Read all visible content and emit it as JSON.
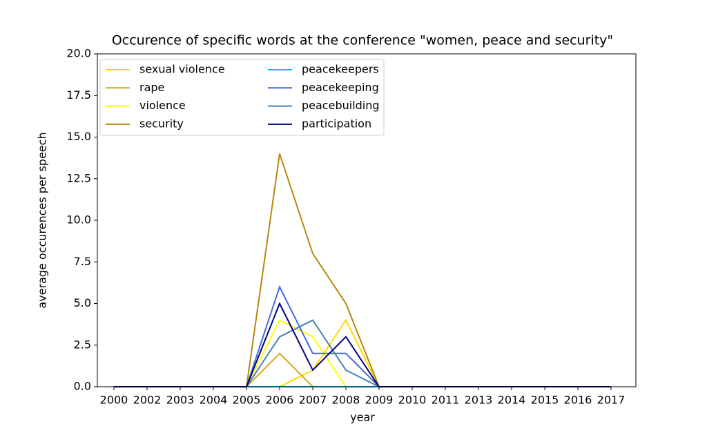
{
  "chart_data": {
    "type": "line",
    "title": "Occurence of specific words at the conference \"women, peace and security\"",
    "x_label": "year",
    "y_label": "average occurences per speech",
    "categories": [
      "2000",
      "2002",
      "2003",
      "2004",
      "2005",
      "2006",
      "2007",
      "2008",
      "2009",
      "2010",
      "2011",
      "2013",
      "2014",
      "2015",
      "2016",
      "2017"
    ],
    "ylim": [
      0,
      20
    ],
    "yticks": [
      {
        "value": 0,
        "label": "0.0"
      },
      2.5,
      {
        "value": 5,
        "label": "5.0"
      },
      7.5,
      {
        "value": 10,
        "label": "10.0"
      },
      12.5,
      {
        "value": 15,
        "label": "15.0"
      },
      17.5,
      {
        "value": 20,
        "label": "20.0"
      }
    ],
    "legend": "upper left",
    "legend_columns": 2,
    "series": [
      {
        "name": "sexual violence",
        "color": "#ffd700",
        "values": [
          0,
          0,
          0,
          0,
          0,
          0,
          1,
          4,
          0,
          0,
          0,
          0,
          0,
          0,
          0,
          0
        ]
      },
      {
        "name": "rape",
        "color": "#daa520",
        "values": [
          0,
          0,
          0,
          0,
          0,
          2,
          0,
          0,
          0,
          0,
          0,
          0,
          0,
          0,
          0,
          0
        ]
      },
      {
        "name": "violence",
        "color": "#ffff00",
        "values": [
          0,
          0,
          0,
          0,
          0,
          4,
          3,
          0,
          0,
          0,
          0,
          0,
          0,
          0,
          0,
          0
        ]
      },
      {
        "name": "security",
        "color": "#b8860b",
        "values": [
          0,
          0,
          0,
          0,
          0,
          14,
          8,
          5,
          0,
          0,
          0,
          0,
          0,
          0,
          0,
          0
        ]
      },
      {
        "name": "peacekeepers",
        "color": "#00bfff",
        "values": [
          0,
          0,
          0,
          0,
          0,
          0,
          0,
          0,
          0,
          0,
          0,
          0,
          0,
          0,
          0,
          0
        ]
      },
      {
        "name": "peacekeeping",
        "color": "#4169e1",
        "values": [
          0,
          0,
          0,
          0,
          0,
          6,
          2,
          2,
          0,
          0,
          0,
          0,
          0,
          0,
          0,
          0
        ]
      },
      {
        "name": "peacebuilding",
        "color": "#4682b4",
        "values": [
          0,
          0,
          0,
          0,
          0,
          3,
          4,
          1,
          0,
          0,
          0,
          0,
          0,
          0,
          0,
          0
        ]
      },
      {
        "name": "participation",
        "color": "#000080",
        "values": [
          0,
          0,
          0,
          0,
          0,
          5,
          1,
          3,
          0,
          0,
          0,
          0,
          0,
          0,
          0,
          0
        ]
      }
    ]
  }
}
